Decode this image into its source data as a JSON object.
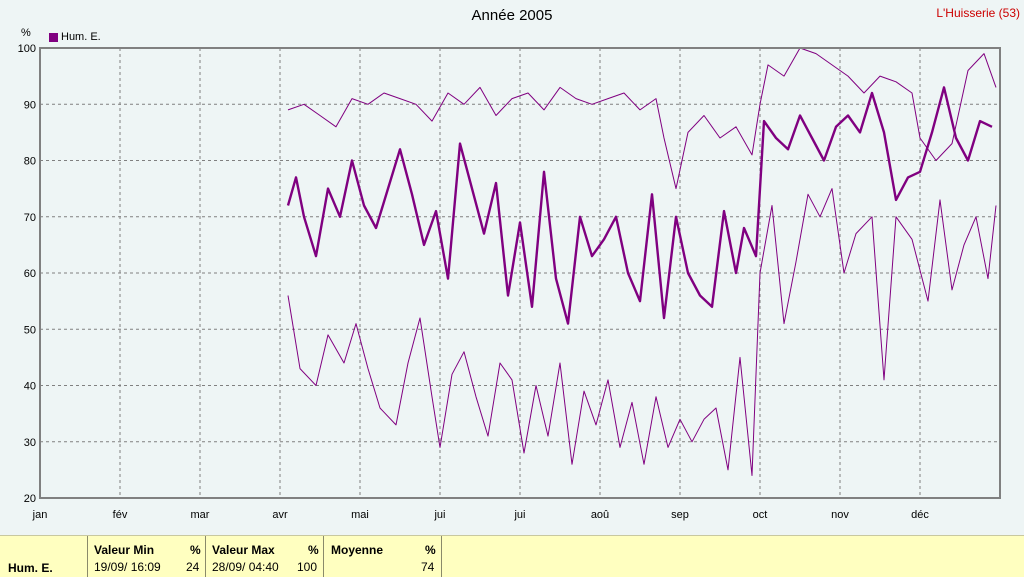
{
  "header": {
    "title": "Année 2005",
    "station": "L'Huisserie (53)"
  },
  "legend": {
    "label": "Hum. E.",
    "color": "#800080"
  },
  "footer": {
    "row_label": "Hum. E.",
    "min_label": "Valeur Min",
    "min_unit": "%",
    "min_date": "19/09/ 16:09",
    "min_value": "24",
    "max_label": "Valeur Max",
    "max_unit": "%",
    "max_date": "28/09/ 04:40",
    "max_value": "100",
    "avg_label": "Moyenne",
    "avg_unit": "%",
    "avg_value": "74"
  },
  "chart_data": {
    "type": "line",
    "title": "Année 2005",
    "ylabel": "%",
    "ylim": [
      20,
      100
    ],
    "yticks": [
      20,
      30,
      40,
      50,
      60,
      70,
      80,
      90,
      100
    ],
    "xticks": [
      "jan",
      "fév",
      "mar",
      "avr",
      "mai",
      "jui",
      "jui",
      "aoû",
      "sep",
      "oct",
      "nov",
      "déc"
    ],
    "grid": true,
    "legend_position": "top-left",
    "series": [
      {
        "name": "Hum. E.",
        "style": "max",
        "points": [
          [
            3.1,
            89
          ],
          [
            3.3,
            90
          ],
          [
            3.5,
            88
          ],
          [
            3.7,
            86
          ],
          [
            3.9,
            91
          ],
          [
            4.1,
            90
          ],
          [
            4.3,
            92
          ],
          [
            4.5,
            91
          ],
          [
            4.7,
            90
          ],
          [
            4.9,
            87
          ],
          [
            5.1,
            92
          ],
          [
            5.3,
            90
          ],
          [
            5.5,
            93
          ],
          [
            5.7,
            88
          ],
          [
            5.9,
            91
          ],
          [
            6.1,
            92
          ],
          [
            6.3,
            89
          ],
          [
            6.5,
            93
          ],
          [
            6.7,
            91
          ],
          [
            6.9,
            90
          ],
          [
            7.1,
            91
          ],
          [
            7.3,
            92
          ],
          [
            7.5,
            89
          ],
          [
            7.7,
            91
          ],
          [
            7.8,
            84
          ],
          [
            7.95,
            75
          ],
          [
            8.1,
            85
          ],
          [
            8.3,
            88
          ],
          [
            8.5,
            84
          ],
          [
            8.7,
            86
          ],
          [
            8.9,
            81
          ],
          [
            9.0,
            90
          ],
          [
            9.1,
            97
          ],
          [
            9.3,
            95
          ],
          [
            9.5,
            100
          ],
          [
            9.7,
            99
          ],
          [
            9.9,
            97
          ],
          [
            10.1,
            95
          ],
          [
            10.3,
            92
          ],
          [
            10.5,
            95
          ],
          [
            10.7,
            94
          ],
          [
            10.9,
            92
          ],
          [
            11.0,
            84
          ],
          [
            11.2,
            80
          ],
          [
            11.4,
            83
          ],
          [
            11.6,
            96
          ],
          [
            11.8,
            99
          ],
          [
            11.95,
            93
          ]
        ]
      },
      {
        "name": "Hum. E.",
        "style": "mean",
        "points": [
          [
            3.1,
            72
          ],
          [
            3.2,
            77
          ],
          [
            3.3,
            70
          ],
          [
            3.45,
            63
          ],
          [
            3.6,
            75
          ],
          [
            3.75,
            70
          ],
          [
            3.9,
            80
          ],
          [
            4.05,
            72
          ],
          [
            4.2,
            68
          ],
          [
            4.35,
            75
          ],
          [
            4.5,
            82
          ],
          [
            4.65,
            74
          ],
          [
            4.8,
            65
          ],
          [
            4.95,
            71
          ],
          [
            5.1,
            59
          ],
          [
            5.25,
            83
          ],
          [
            5.4,
            75
          ],
          [
            5.55,
            67
          ],
          [
            5.7,
            76
          ],
          [
            5.85,
            56
          ],
          [
            6.0,
            69
          ],
          [
            6.15,
            54
          ],
          [
            6.3,
            78
          ],
          [
            6.45,
            59
          ],
          [
            6.6,
            51
          ],
          [
            6.75,
            70
          ],
          [
            6.9,
            63
          ],
          [
            7.05,
            66
          ],
          [
            7.2,
            70
          ],
          [
            7.35,
            60
          ],
          [
            7.5,
            55
          ],
          [
            7.65,
            74
          ],
          [
            7.8,
            52
          ],
          [
            7.95,
            70
          ],
          [
            8.1,
            60
          ],
          [
            8.25,
            56
          ],
          [
            8.4,
            54
          ],
          [
            8.55,
            71
          ],
          [
            8.7,
            60
          ],
          [
            8.8,
            68
          ],
          [
            8.95,
            63
          ],
          [
            9.05,
            87
          ],
          [
            9.2,
            84
          ],
          [
            9.35,
            82
          ],
          [
            9.5,
            88
          ],
          [
            9.65,
            84
          ],
          [
            9.8,
            80
          ],
          [
            9.95,
            86
          ],
          [
            10.1,
            88
          ],
          [
            10.25,
            85
          ],
          [
            10.4,
            92
          ],
          [
            10.55,
            85
          ],
          [
            10.7,
            73
          ],
          [
            10.85,
            77
          ],
          [
            11.0,
            78
          ],
          [
            11.15,
            85
          ],
          [
            11.3,
            93
          ],
          [
            11.45,
            84
          ],
          [
            11.6,
            80
          ],
          [
            11.75,
            87
          ],
          [
            11.9,
            86
          ]
        ]
      },
      {
        "name": "Hum. E.",
        "style": "min",
        "points": [
          [
            3.1,
            56
          ],
          [
            3.25,
            43
          ],
          [
            3.45,
            40
          ],
          [
            3.6,
            49
          ],
          [
            3.8,
            44
          ],
          [
            3.95,
            51
          ],
          [
            4.1,
            43
          ],
          [
            4.25,
            36
          ],
          [
            4.45,
            33
          ],
          [
            4.6,
            44
          ],
          [
            4.75,
            52
          ],
          [
            4.9,
            38
          ],
          [
            5.0,
            29
          ],
          [
            5.15,
            42
          ],
          [
            5.3,
            46
          ],
          [
            5.45,
            38
          ],
          [
            5.6,
            31
          ],
          [
            5.75,
            44
          ],
          [
            5.9,
            41
          ],
          [
            6.05,
            28
          ],
          [
            6.2,
            40
          ],
          [
            6.35,
            31
          ],
          [
            6.5,
            44
          ],
          [
            6.65,
            26
          ],
          [
            6.8,
            39
          ],
          [
            6.95,
            33
          ],
          [
            7.1,
            41
          ],
          [
            7.25,
            29
          ],
          [
            7.4,
            37
          ],
          [
            7.55,
            26
          ],
          [
            7.7,
            38
          ],
          [
            7.85,
            29
          ],
          [
            8.0,
            34
          ],
          [
            8.15,
            30
          ],
          [
            8.3,
            34
          ],
          [
            8.45,
            36
          ],
          [
            8.6,
            25
          ],
          [
            8.75,
            45
          ],
          [
            8.9,
            24
          ],
          [
            9.0,
            60
          ],
          [
            9.15,
            72
          ],
          [
            9.3,
            51
          ],
          [
            9.45,
            62
          ],
          [
            9.6,
            74
          ],
          [
            9.75,
            70
          ],
          [
            9.9,
            75
          ],
          [
            10.05,
            60
          ],
          [
            10.2,
            67
          ],
          [
            10.4,
            70
          ],
          [
            10.55,
            41
          ],
          [
            10.7,
            70
          ],
          [
            10.9,
            66
          ],
          [
            11.1,
            55
          ],
          [
            11.25,
            73
          ],
          [
            11.4,
            57
          ],
          [
            11.55,
            65
          ],
          [
            11.7,
            70
          ],
          [
            11.85,
            59
          ],
          [
            11.95,
            72
          ]
        ]
      }
    ]
  }
}
